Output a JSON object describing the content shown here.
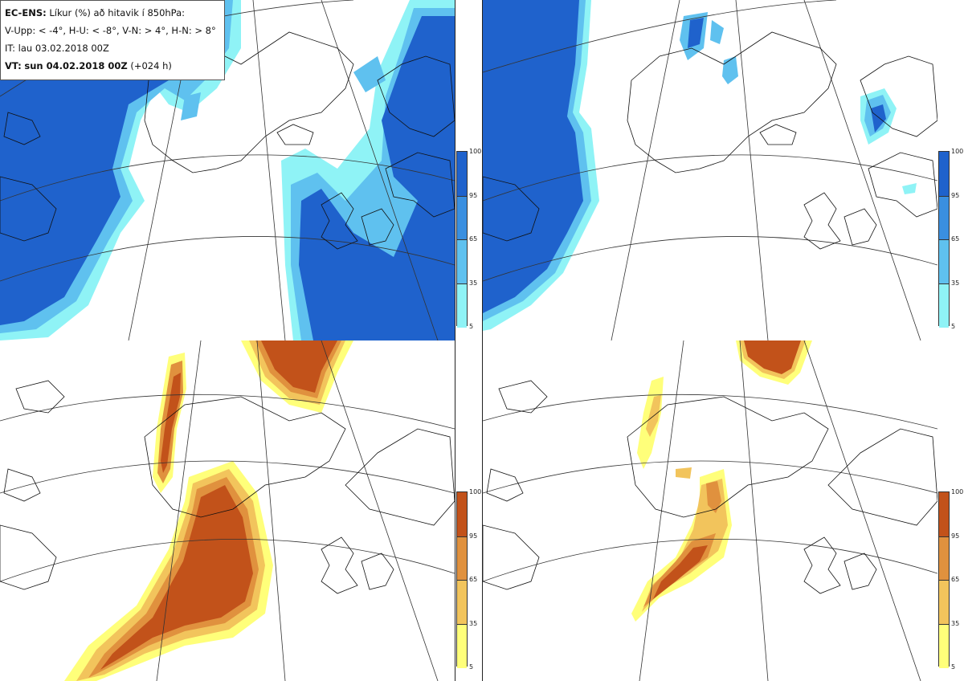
{
  "header": {
    "product": "EC-ENS:",
    "description": "Líkur (%) að hitavik í 850hPa:",
    "thresholds": "V-Upp: < -4°, H-U: < -8°, V-N: > 4°, H-N: > 8°",
    "initial_time": "IT: lau 03.02.2018 00Z",
    "valid_label": "VT:",
    "valid_time": "sun 04.02.2018 00Z",
    "valid_offset": "(+024 h)"
  },
  "colorbars": {
    "ticks": [
      "100",
      "95",
      "65",
      "35",
      "5"
    ],
    "cold_colors": [
      "#1f62cc",
      "#3a8fe0",
      "#5fc1ef",
      "#8ff3f6"
    ],
    "warm_colors": [
      "#c2521a",
      "#e0913e",
      "#f2c45c",
      "#ffff7a"
    ]
  },
  "panels": [
    {
      "id": "tl",
      "name": "cold-anomaly-below-minus4"
    },
    {
      "id": "tr",
      "name": "cold-anomaly-below-minus8"
    },
    {
      "id": "bl",
      "name": "warm-anomaly-above-4"
    },
    {
      "id": "br",
      "name": "warm-anomaly-above-8"
    }
  ]
}
